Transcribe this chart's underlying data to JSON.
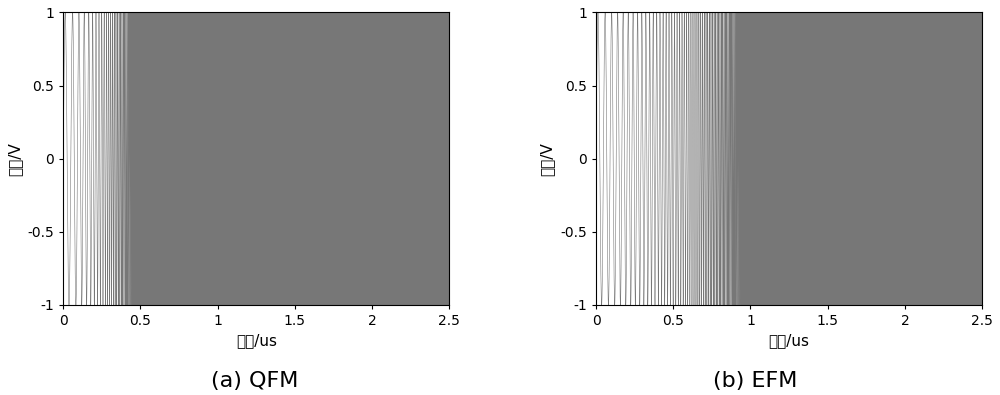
{
  "duration_us": 2.5,
  "title_a": "(a) QFM",
  "title_b": "(b) EFM",
  "xlabel": "时间/us",
  "ylabel": "幅度/V",
  "xlim": [
    0,
    2.5
  ],
  "ylim": [
    -1,
    1
  ],
  "xticks": [
    0,
    0.5,
    1.0,
    1.5,
    2.0,
    2.5
  ],
  "xtick_labels": [
    "0",
    "0.5",
    "1",
    "1.5",
    "2",
    "2.5"
  ],
  "yticks": [
    -1,
    -0.5,
    0,
    0.5,
    1
  ],
  "ytick_labels": [
    "-1",
    "-0.5",
    "0",
    "0.5",
    "1"
  ],
  "signal_color": "#777777",
  "line_width": 0.4,
  "bg_color": "#ffffff",
  "font_size_label": 11,
  "font_size_title": 16,
  "font_size_tick": 10,
  "n_samples": 200000,
  "qfm_f0_hz": 20000000,
  "qfm_f1_hz": 4000000000,
  "efm_f0_hz": 20000000,
  "efm_f1_hz": 4000000000
}
